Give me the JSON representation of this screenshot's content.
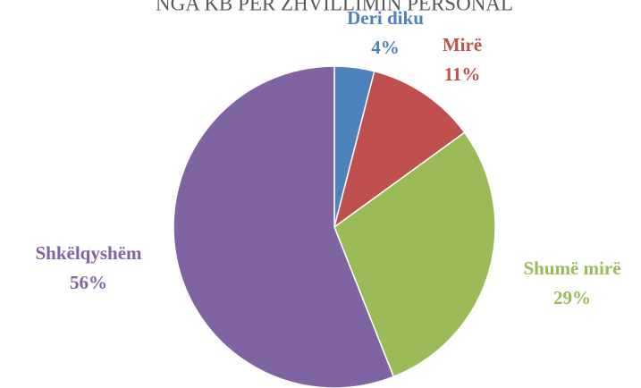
{
  "chart_data": {
    "type": "pie",
    "title": "NGA KB PER ZHVILLIMIN PERSONAL",
    "categories": [
      "Deri diku",
      "Mirë",
      "Shumë mirë",
      "Shkëlqyshëm"
    ],
    "values": [
      4,
      11,
      29,
      56
    ],
    "value_labels": [
      "4%",
      "11%",
      "29%",
      "56%"
    ],
    "colors": [
      "#4f81bd",
      "#c0504d",
      "#9bbb59",
      "#8064a2"
    ]
  }
}
